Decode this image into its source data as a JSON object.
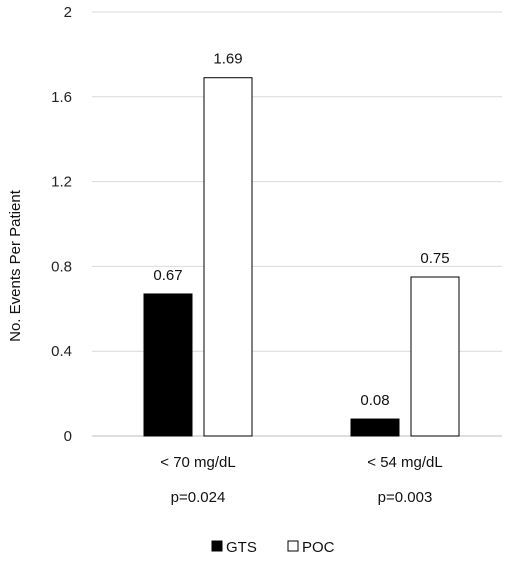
{
  "chart_data": {
    "type": "bar",
    "categories": [
      "< 70 mg/dL",
      "< 54 mg/dL"
    ],
    "category_notes": [
      "p=0.024",
      "p=0.003"
    ],
    "series": [
      {
        "name": "GTS",
        "values": [
          0.67,
          0.08
        ],
        "value_labels": [
          "0.67",
          "0.08"
        ],
        "fill": "#000000"
      },
      {
        "name": "POC",
        "values": [
          1.69,
          0.75
        ],
        "value_labels": [
          "1.69",
          "0.75"
        ],
        "fill": "#ffffff"
      }
    ],
    "ylabel": "No. Events Per Patient",
    "ylim": [
      0,
      2
    ],
    "yticks": [
      0,
      0.4,
      0.8,
      1.2,
      1.6,
      2
    ],
    "ytick_labels": [
      "0",
      "0.4",
      "0.8",
      "1.2",
      "1.6",
      "2"
    ],
    "grid": true,
    "legend_position": "bottom-center",
    "colors": {
      "gridline": "#d9d9d9",
      "axis": "#bfbfbf",
      "bar_stroke": "#000000"
    }
  }
}
